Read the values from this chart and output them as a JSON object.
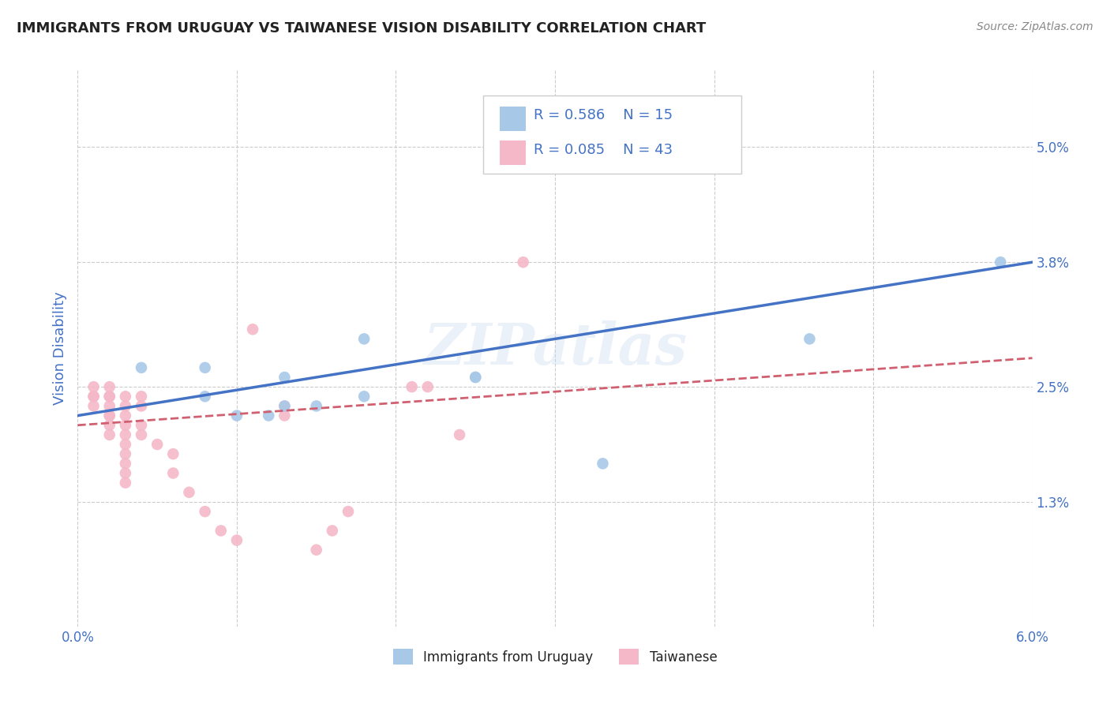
{
  "title": "IMMIGRANTS FROM URUGUAY VS TAIWANESE VISION DISABILITY CORRELATION CHART",
  "source": "Source: ZipAtlas.com",
  "ylabel": "Vision Disability",
  "xlim": [
    0.0,
    0.06
  ],
  "ylim": [
    0.0,
    0.058
  ],
  "ytick_values": [
    0.013,
    0.025,
    0.038,
    0.05
  ],
  "ytick_labels": [
    "1.3%",
    "2.5%",
    "3.8%",
    "5.0%"
  ],
  "xtick_values": [
    0.0,
    0.01,
    0.02,
    0.03,
    0.04,
    0.05,
    0.06
  ],
  "xtick_labels": [
    "0.0%",
    "",
    "",
    "",
    "",
    "",
    "6.0%"
  ],
  "grid_ytick_values": [
    0.013,
    0.025,
    0.038,
    0.05
  ],
  "grid_xtick_values": [
    0.0,
    0.01,
    0.02,
    0.03,
    0.04,
    0.05,
    0.06
  ],
  "grid_color": "#cccccc",
  "watermark": "ZIPatlas",
  "legend_R_blue": "0.586",
  "legend_N_blue": "15",
  "legend_R_pink": "0.085",
  "legend_N_pink": "43",
  "blue_scatter": [
    [
      0.004,
      0.027
    ],
    [
      0.008,
      0.027
    ],
    [
      0.008,
      0.024
    ],
    [
      0.01,
      0.022
    ],
    [
      0.012,
      0.022
    ],
    [
      0.013,
      0.023
    ],
    [
      0.013,
      0.026
    ],
    [
      0.015,
      0.023
    ],
    [
      0.018,
      0.024
    ],
    [
      0.018,
      0.03
    ],
    [
      0.025,
      0.026
    ],
    [
      0.025,
      0.026
    ],
    [
      0.033,
      0.017
    ],
    [
      0.046,
      0.03
    ],
    [
      0.058,
      0.038
    ]
  ],
  "pink_scatter": [
    [
      0.001,
      0.025
    ],
    [
      0.001,
      0.024
    ],
    [
      0.001,
      0.024
    ],
    [
      0.001,
      0.023
    ],
    [
      0.002,
      0.025
    ],
    [
      0.002,
      0.024
    ],
    [
      0.002,
      0.024
    ],
    [
      0.002,
      0.023
    ],
    [
      0.002,
      0.022
    ],
    [
      0.002,
      0.022
    ],
    [
      0.002,
      0.021
    ],
    [
      0.002,
      0.02
    ],
    [
      0.003,
      0.024
    ],
    [
      0.003,
      0.023
    ],
    [
      0.003,
      0.022
    ],
    [
      0.003,
      0.021
    ],
    [
      0.003,
      0.02
    ],
    [
      0.003,
      0.019
    ],
    [
      0.003,
      0.018
    ],
    [
      0.003,
      0.017
    ],
    [
      0.003,
      0.016
    ],
    [
      0.003,
      0.015
    ],
    [
      0.004,
      0.024
    ],
    [
      0.004,
      0.023
    ],
    [
      0.004,
      0.021
    ],
    [
      0.004,
      0.02
    ],
    [
      0.005,
      0.019
    ],
    [
      0.006,
      0.018
    ],
    [
      0.006,
      0.016
    ],
    [
      0.007,
      0.014
    ],
    [
      0.008,
      0.012
    ],
    [
      0.009,
      0.01
    ],
    [
      0.01,
      0.009
    ],
    [
      0.011,
      0.031
    ],
    [
      0.013,
      0.023
    ],
    [
      0.013,
      0.022
    ],
    [
      0.015,
      0.008
    ],
    [
      0.016,
      0.01
    ],
    [
      0.017,
      0.012
    ],
    [
      0.021,
      0.025
    ],
    [
      0.022,
      0.025
    ],
    [
      0.024,
      0.02
    ],
    [
      0.028,
      0.038
    ]
  ],
  "blue_line_x": [
    0.0,
    0.06
  ],
  "blue_line_y": [
    0.022,
    0.038
  ],
  "pink_line_x": [
    0.0,
    0.06
  ],
  "pink_line_y": [
    0.021,
    0.028
  ],
  "blue_color": "#a8c8e8",
  "pink_color": "#f4b8c8",
  "blue_line_color": "#4472c4",
  "pink_line_color": "#d06070",
  "background_color": "#ffffff",
  "title_color": "#222222",
  "axis_label_color": "#4472c4",
  "right_label_color": "#4472c4"
}
